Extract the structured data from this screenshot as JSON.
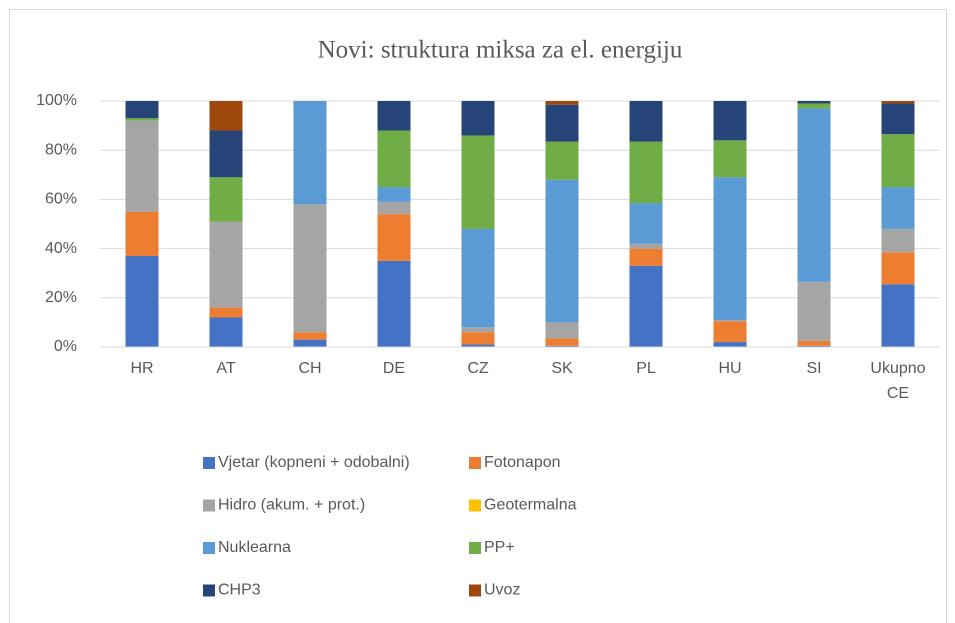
{
  "chart_data": {
    "type": "stacked_bar",
    "title": "Novi: struktura miksa za el. energiju",
    "categories": [
      "HR",
      "AT",
      "CH",
      "DE",
      "CZ",
      "SK",
      "PL",
      "HU",
      "SI",
      "Ukupno CE"
    ],
    "ylim": [
      0,
      100
    ],
    "yticks": [
      {
        "value": 0,
        "label": "0%"
      },
      {
        "value": 20,
        "label": "20%"
      },
      {
        "value": 40,
        "label": "40%"
      },
      {
        "value": 60,
        "label": "60%"
      },
      {
        "value": 80,
        "label": "80%"
      },
      {
        "value": 100,
        "label": "100%"
      }
    ],
    "grid": true,
    "legend": "bottom",
    "series": [
      {
        "name": "Vjetar (kopneni + odobalni)",
        "color": "#4472c4",
        "values": [
          37,
          12,
          3,
          35,
          1,
          0.5,
          33,
          2,
          0.5,
          25.5
        ]
      },
      {
        "name": "Fotonapon",
        "color": "#ed7d31",
        "values": [
          18,
          4,
          3,
          19,
          5,
          3,
          7,
          8.5,
          2,
          13
        ]
      },
      {
        "name": "Hidro (akum. + prot.)",
        "color": "#a5a5a5",
        "values": [
          37,
          35,
          52,
          5,
          2,
          6.5,
          2,
          0.5,
          24,
          9.5
        ]
      },
      {
        "name": "Geotermalna",
        "color": "#ffc000",
        "values": [
          0,
          0,
          0,
          0,
          0,
          0,
          0,
          0,
          0,
          0
        ]
      },
      {
        "name": "Nuklearna",
        "color": "#5b9bd5",
        "values": [
          0,
          0,
          42,
          6,
          40,
          58,
          16.5,
          58,
          70.5,
          17
        ]
      },
      {
        "name": "PP+",
        "color": "#70ad47",
        "values": [
          1,
          18,
          0,
          23,
          38,
          15.5,
          25,
          15,
          2,
          21.5
        ]
      },
      {
        "name": "CHP3",
        "color": "#264478",
        "values": [
          7,
          19,
          0,
          12,
          14,
          15,
          16.5,
          16,
          1,
          12.5
        ]
      },
      {
        "name": "Uvoz",
        "color": "#9e480e",
        "values": [
          0,
          12,
          0,
          0,
          0,
          1.5,
          0,
          0,
          0,
          1
        ]
      }
    ]
  }
}
